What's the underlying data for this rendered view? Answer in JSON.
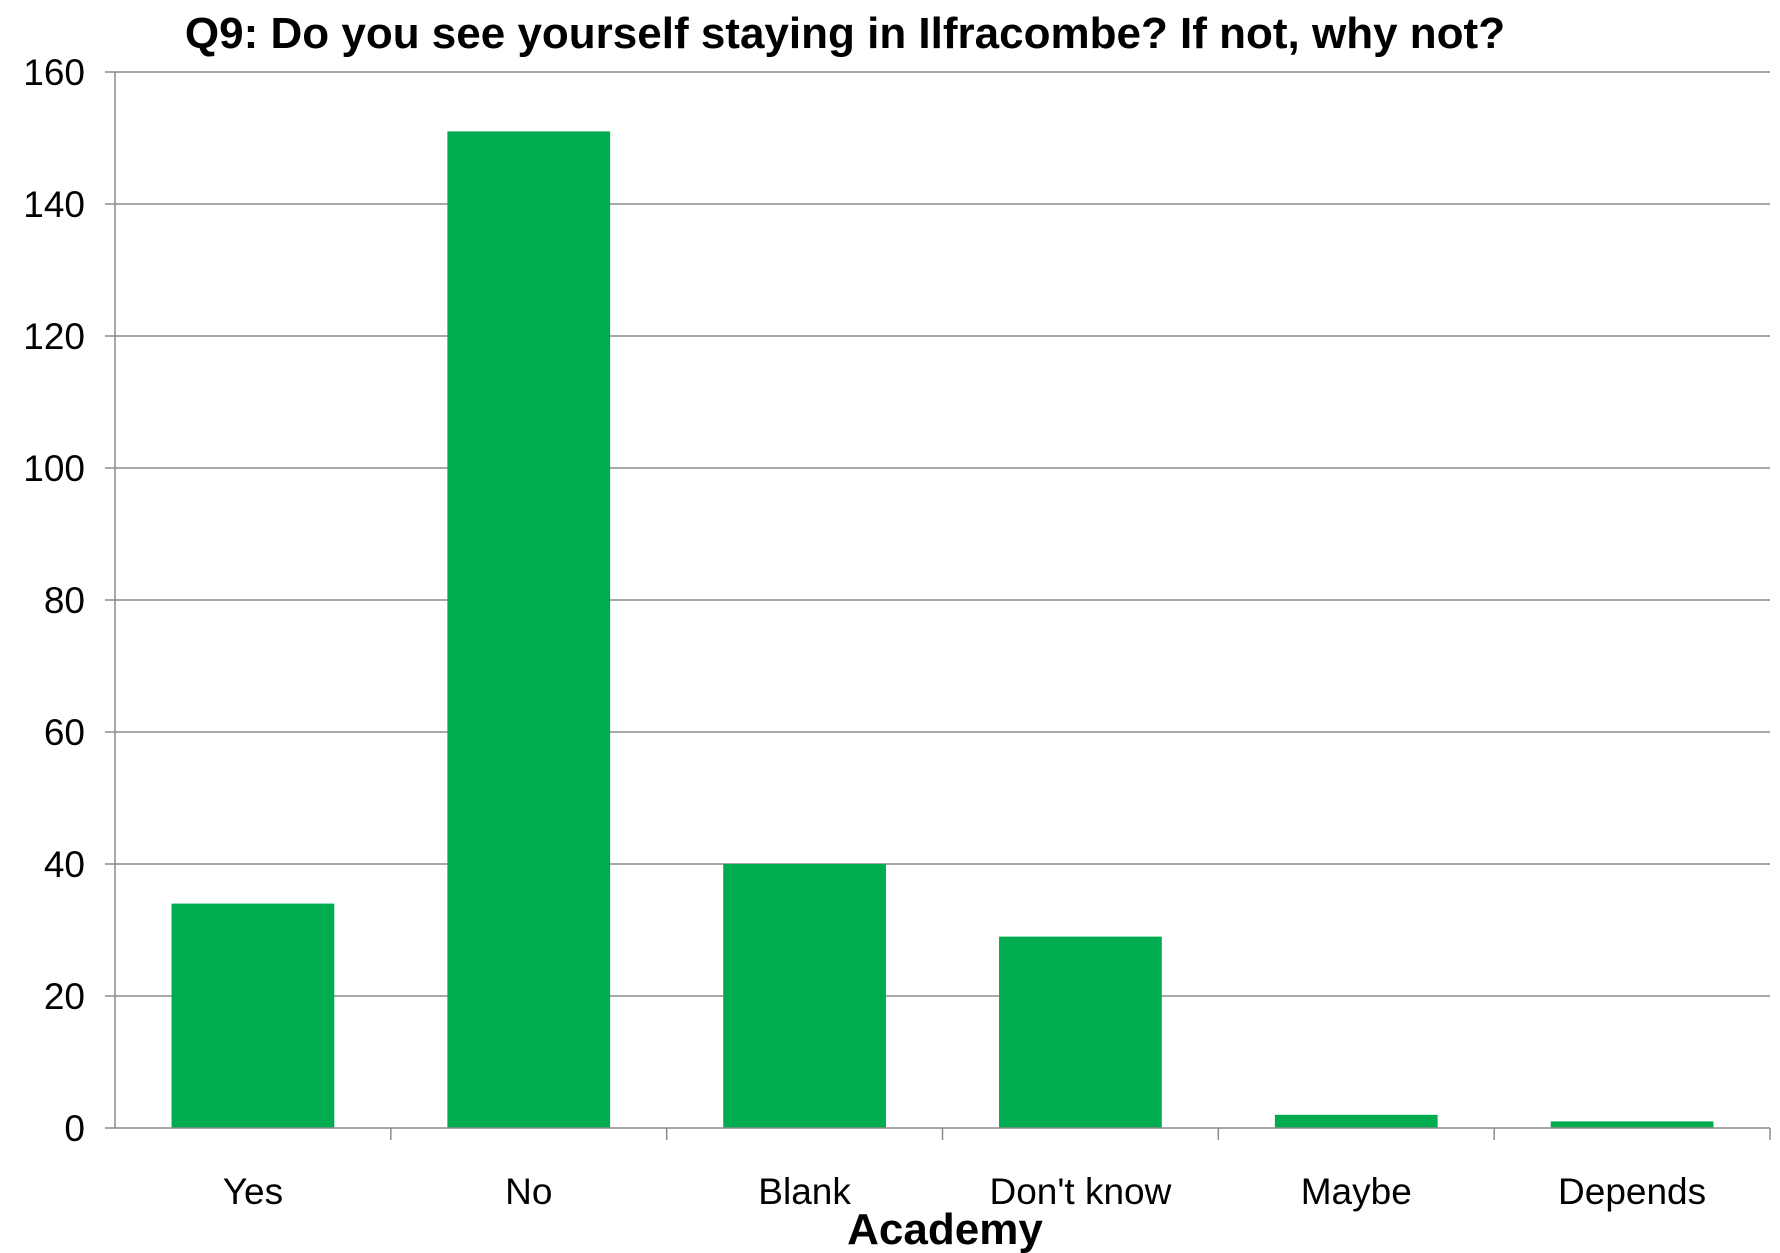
{
  "chart_data": {
    "type": "bar",
    "title": "Q9: Do you see yourself staying in Ilfracombe? If not, why not?",
    "xlabel": "Academy",
    "ylabel": "",
    "categories": [
      "Yes",
      "No",
      "Blank",
      "Don't know",
      "Maybe",
      "Depends"
    ],
    "values": [
      34,
      151,
      40,
      29,
      2,
      1
    ],
    "ylim": [
      0,
      160
    ],
    "yticks": [
      "0",
      "20",
      "40",
      "60",
      "80",
      "100",
      "120",
      "140",
      "160"
    ],
    "bar_color": "#00ac4f",
    "grid": true,
    "legend": "none"
  }
}
